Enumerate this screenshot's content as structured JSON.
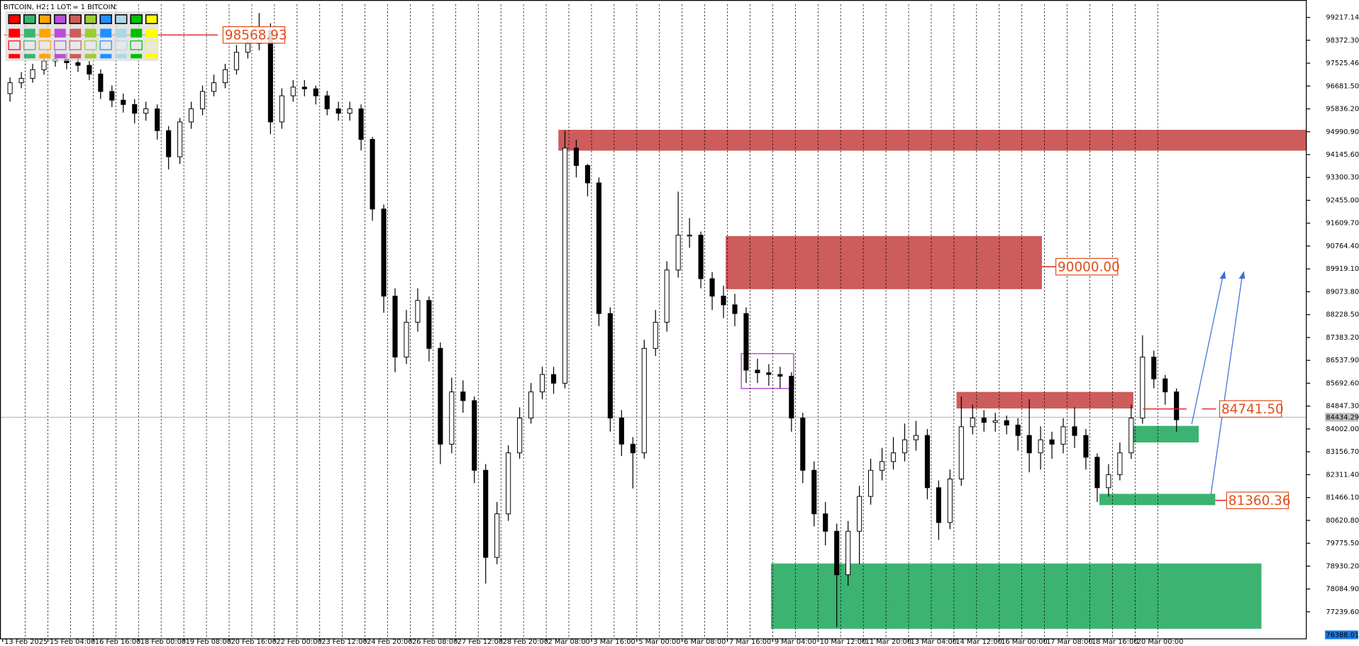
{
  "chart_data": {
    "type": "candlestick",
    "title": "BITCOIN, H2:  1 LOT = 1 BITCOIN",
    "categories": [
      "13 Feb 2025",
      null,
      null,
      null,
      "15 Feb 04:00",
      null,
      null,
      null,
      "16 Feb 16:00",
      null,
      null,
      null,
      "18 Feb 00:00",
      null,
      null,
      null,
      "19 Feb 08:00",
      null,
      null,
      null,
      "20 Feb 16:00",
      null,
      null,
      null,
      "22 Feb 00:00",
      null,
      null,
      null,
      "23 Feb 12:00",
      null,
      null,
      null,
      "24 Feb 20:00",
      null,
      null,
      null,
      "26 Feb 08:00",
      null,
      null,
      null,
      "27 Feb 12:00",
      null,
      null,
      null,
      "28 Feb 20:00",
      null,
      null,
      null,
      "2 Mar 08:00",
      null,
      null,
      null,
      "3 Mar 16:00",
      null,
      null,
      null,
      "5 Mar 00:00",
      null,
      null,
      null,
      "6 Mar 08:00",
      null,
      null,
      null,
      "7 Mar 16:00",
      null,
      null,
      null,
      "9 Mar 04:00",
      null,
      null,
      null,
      "10 Mar 12:00",
      null,
      null,
      null,
      "11 Mar 20:00",
      null,
      null,
      null,
      "13 Mar 04:00",
      null,
      null,
      null,
      "14 Mar 12:00",
      null,
      null,
      null,
      "16 Mar 00:00",
      null,
      null,
      null,
      "17 Mar 08:00",
      null,
      null,
      null,
      "18 Mar 16:00",
      null,
      null,
      null,
      "20 Mar 00:00",
      null,
      null,
      null
    ],
    "candles": [
      [
        96400,
        97000,
        96100,
        96802
      ],
      [
        96802,
        97200,
        96600,
        96963
      ],
      [
        96963,
        97500,
        96800,
        97285
      ],
      [
        97285,
        97900,
        97100,
        97607
      ],
      [
        97607,
        98000,
        97400,
        97671
      ],
      [
        97671,
        97900,
        97300,
        97543
      ],
      [
        97543,
        97800,
        97200,
        97446
      ],
      [
        97446,
        97600,
        96900,
        97124
      ],
      [
        97124,
        97300,
        96200,
        96480
      ],
      [
        96480,
        96700,
        95900,
        96158
      ],
      [
        96158,
        96400,
        95700,
        95997
      ],
      [
        95997,
        96200,
        95300,
        95675
      ],
      [
        95675,
        96100,
        95400,
        95836
      ],
      [
        95836,
        96000,
        94700,
        95031
      ],
      [
        95031,
        95200,
        93600,
        94065
      ],
      [
        94065,
        95500,
        93800,
        95353
      ],
      [
        95353,
        96100,
        95100,
        95836
      ],
      [
        95836,
        96700,
        95600,
        96480
      ],
      [
        96480,
        97100,
        96300,
        96802
      ],
      [
        96802,
        97500,
        96600,
        97285
      ],
      [
        97285,
        98200,
        97100,
        97929
      ],
      [
        97929,
        98700,
        97700,
        98251
      ],
      [
        98251,
        99380,
        98000,
        98734
      ],
      [
        98734,
        99000,
        94900,
        95353
      ],
      [
        95353,
        96600,
        95100,
        96319
      ],
      [
        96319,
        96900,
        96100,
        96641
      ],
      [
        96641,
        96900,
        96300,
        96577
      ],
      [
        96577,
        96700,
        96000,
        96319
      ],
      [
        96319,
        96500,
        95600,
        95836
      ],
      [
        95836,
        96100,
        95400,
        95675
      ],
      [
        95675,
        96100,
        95400,
        95836
      ],
      [
        95836,
        96000,
        94300,
        94709
      ],
      [
        94709,
        94800,
        91700,
        92133
      ],
      [
        92133,
        92300,
        88300,
        88913
      ],
      [
        88913,
        89200,
        86100,
        86659
      ],
      [
        86659,
        88400,
        86400,
        87947
      ],
      [
        87947,
        89200,
        87600,
        88752
      ],
      [
        88752,
        88900,
        86500,
        86981
      ],
      [
        86981,
        87200,
        82700,
        83439
      ],
      [
        83439,
        85900,
        83100,
        85371
      ],
      [
        85371,
        85800,
        84600,
        85049
      ],
      [
        85049,
        85200,
        82000,
        82473
      ],
      [
        82473,
        82700,
        78287,
        79253
      ],
      [
        79253,
        81300,
        79000,
        80863
      ],
      [
        80863,
        83400,
        80600,
        83117
      ],
      [
        83117,
        84800,
        82900,
        84405
      ],
      [
        84405,
        85700,
        84200,
        85371
      ],
      [
        85371,
        86300,
        85100,
        86015
      ],
      [
        86015,
        86300,
        85300,
        85693
      ],
      [
        85693,
        95030,
        85500,
        94387
      ],
      [
        94387,
        94700,
        93300,
        93743
      ],
      [
        93743,
        93800,
        92600,
        93099
      ],
      [
        93099,
        93300,
        87800,
        88269
      ],
      [
        88269,
        88500,
        83900,
        84405
      ],
      [
        84405,
        84700,
        83000,
        83439
      ],
      [
        83439,
        83700,
        81800,
        83117
      ],
      [
        83117,
        87300,
        82900,
        86981
      ],
      [
        86981,
        88400,
        86700,
        87947
      ],
      [
        87947,
        90200,
        87600,
        89879
      ],
      [
        89879,
        92777,
        89600,
        91167
      ],
      [
        91167,
        91800,
        90700,
        91167
      ],
      [
        91167,
        91300,
        89200,
        89557
      ],
      [
        89557,
        89800,
        88400,
        88913
      ],
      [
        88913,
        89300,
        88100,
        88591
      ],
      [
        88591,
        89000,
        87800,
        88269
      ],
      [
        88269,
        88500,
        85700,
        86176
      ],
      [
        86176,
        86600,
        85700,
        86079
      ],
      [
        86079,
        86400,
        85600,
        86015
      ],
      [
        86015,
        86300,
        85500,
        85951
      ],
      [
        85951,
        86100,
        83900,
        84405
      ],
      [
        84405,
        84600,
        82000,
        82473
      ],
      [
        82473,
        82800,
        80400,
        80863
      ],
      [
        80863,
        81300,
        79700,
        80219
      ],
      [
        80219,
        80500,
        76677,
        78609
      ],
      [
        78609,
        80600,
        78200,
        80219
      ],
      [
        80219,
        81900,
        79000,
        81507
      ],
      [
        81507,
        82900,
        81200,
        82473
      ],
      [
        82473,
        83300,
        82100,
        82795
      ],
      [
        82795,
        83700,
        82500,
        83117
      ],
      [
        83117,
        84200,
        82800,
        83600
      ],
      [
        83600,
        84300,
        83200,
        83761
      ],
      [
        83761,
        84000,
        81400,
        81829
      ],
      [
        81829,
        82100,
        79900,
        80541
      ],
      [
        80541,
        82500,
        80300,
        82151
      ],
      [
        82151,
        85200,
        81900,
        84083
      ],
      [
        84083,
        84900,
        83800,
        84405
      ],
      [
        84405,
        84700,
        83900,
        84244
      ],
      [
        84244,
        84600,
        83900,
        84308
      ],
      [
        84308,
        84500,
        83800,
        84147
      ],
      [
        84147,
        84400,
        83200,
        83761
      ],
      [
        83761,
        85100,
        82400,
        83117
      ],
      [
        83117,
        84100,
        82500,
        83600
      ],
      [
        83600,
        83900,
        82900,
        83439
      ],
      [
        83439,
        84400,
        83100,
        84083
      ],
      [
        84083,
        84800,
        83300,
        83761
      ],
      [
        83761,
        84000,
        82500,
        82956
      ],
      [
        82956,
        83100,
        81300,
        81829
      ],
      [
        81829,
        82700,
        81500,
        82312
      ],
      [
        82312,
        83500,
        82100,
        83117
      ],
      [
        83117,
        84900,
        82900,
        84405
      ],
      [
        84405,
        87464,
        84200,
        86659
      ],
      [
        86659,
        86900,
        85500,
        85854
      ],
      [
        85854,
        86000,
        84900,
        85371
      ],
      [
        85371,
        85500,
        83900,
        84341
      ]
    ],
    "ylim": [
      76225,
      99700
    ],
    "yticks": [
      {
        "value": 99217.14,
        "label": "99217.14"
      },
      {
        "value": 98372.3,
        "label": "98372.30"
      },
      {
        "value": 97525.46,
        "label": "97525.46"
      },
      {
        "value": 96681.5,
        "label": "96681.50"
      },
      {
        "value": 95836.2,
        "label": "95836.20"
      },
      {
        "value": 94990.9,
        "label": "94990.90"
      },
      {
        "value": 94145.6,
        "label": "94145.60"
      },
      {
        "value": 93300.3,
        "label": "93300.30"
      },
      {
        "value": 92455.0,
        "label": "92455.00"
      },
      {
        "value": 91609.7,
        "label": "91609.70"
      },
      {
        "value": 90764.4,
        "label": "90764.40"
      },
      {
        "value": 89919.1,
        "label": "89919.10"
      },
      {
        "value": 89073.8,
        "label": "89073.80"
      },
      {
        "value": 88228.5,
        "label": "88228.50"
      },
      {
        "value": 87383.2,
        "label": "87383.20"
      },
      {
        "value": 86537.9,
        "label": "86537.90"
      },
      {
        "value": 85692.6,
        "label": "85692.60"
      },
      {
        "value": 84847.3,
        "label": "84847.30"
      },
      {
        "value": 84002.0,
        "label": "84002.00"
      },
      {
        "value": 83156.7,
        "label": "83156.70"
      },
      {
        "value": 82311.4,
        "label": "82311.40"
      },
      {
        "value": 81466.1,
        "label": "81466.10"
      },
      {
        "value": 80620.8,
        "label": "80620.80"
      },
      {
        "value": 79775.5,
        "label": "79775.50"
      },
      {
        "value": 78930.2,
        "label": "78930.20"
      },
      {
        "value": 78084.9,
        "label": "78084.90"
      },
      {
        "value": 77239.6,
        "label": "77239.60"
      }
    ],
    "x_grid": true,
    "current_price": {
      "value": 84434.29,
      "label": "84434.29"
    },
    "low_marker": {
      "value": 76388.01,
      "label": "76388.01"
    },
    "annotations": [
      {
        "value": 98568.93,
        "label": "98568.93"
      },
      {
        "value": 90000.0,
        "label": "90000.00"
      },
      {
        "value": 84741.5,
        "label": "84741.50"
      },
      {
        "value": 81360.36,
        "label": "81360.36"
      }
    ]
  }
}
